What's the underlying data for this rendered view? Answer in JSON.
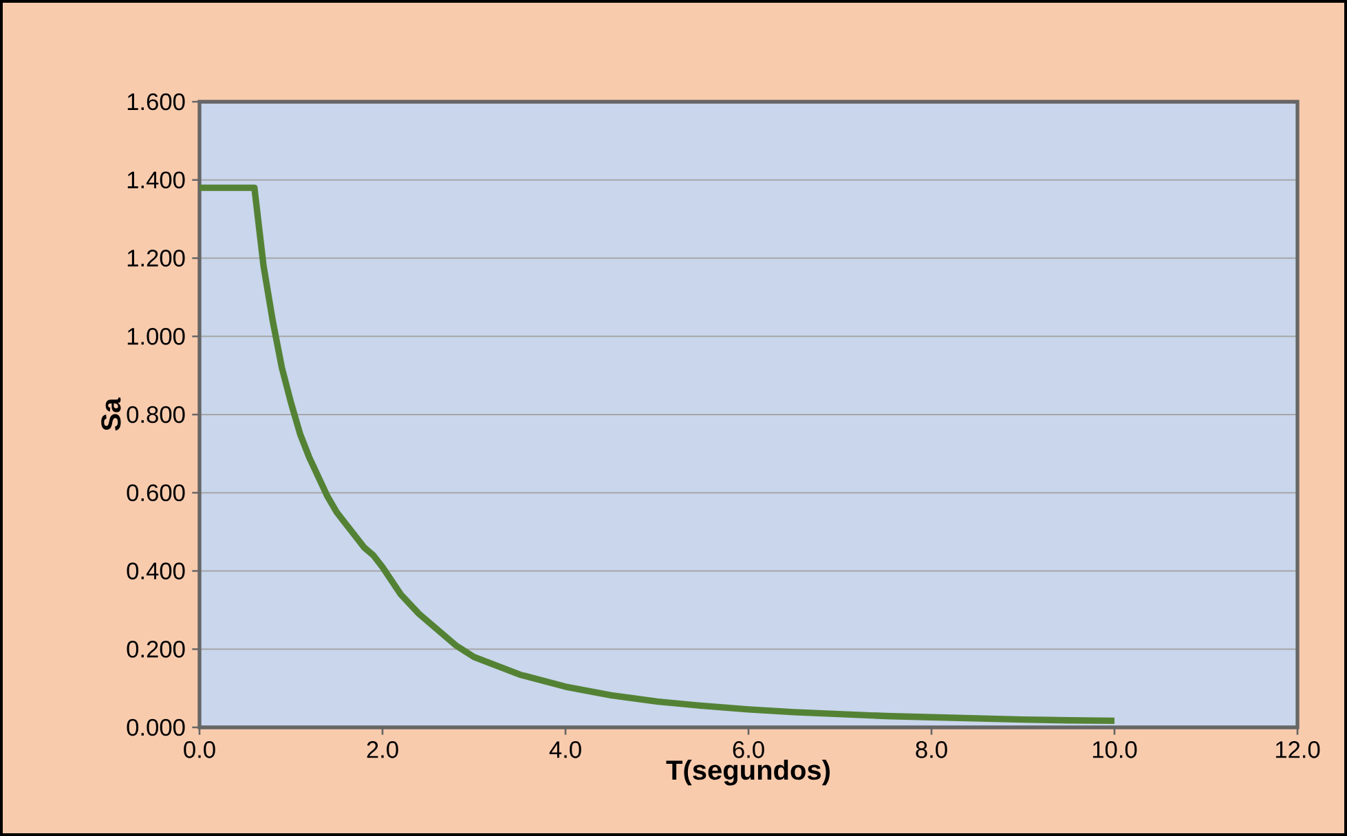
{
  "chart_data": {
    "type": "line",
    "xlabel": "T(segundos)",
    "ylabel": "Sa",
    "x": [
      0,
      0.1,
      0.2,
      0.3,
      0.4,
      0.5,
      0.6,
      0.7,
      0.8,
      0.9,
      1.0,
      1.1,
      1.2,
      1.3,
      1.4,
      1.5,
      1.6,
      1.7,
      1.8,
      1.9,
      2.0,
      2.2,
      2.4,
      2.6,
      2.8,
      3.0,
      3.5,
      4.0,
      4.5,
      5.0,
      5.5,
      6.0,
      6.5,
      7.0,
      7.5,
      8.0,
      8.5,
      9.0,
      9.5,
      10.0
    ],
    "series": [
      {
        "color": "#548235",
        "values": [
          1.38,
          1.38,
          1.38,
          1.38,
          1.38,
          1.38,
          1.38,
          1.18,
          1.04,
          0.92,
          0.83,
          0.75,
          0.69,
          0.64,
          0.59,
          0.55,
          0.52,
          0.49,
          0.46,
          0.44,
          0.41,
          0.34,
          0.29,
          0.25,
          0.21,
          0.18,
          0.135,
          0.104,
          0.082,
          0.066,
          0.055,
          0.046,
          0.039,
          0.034,
          0.029,
          0.026,
          0.023,
          0.02,
          0.018,
          0.017
        ]
      }
    ],
    "xlim": [
      0,
      12
    ],
    "ylim": [
      0,
      1.6
    ],
    "xticks": [
      {
        "value": 0,
        "label": "0.0"
      },
      {
        "value": 2,
        "label": "2.0"
      },
      {
        "value": 4,
        "label": "4.0"
      },
      {
        "value": 6,
        "label": "6.0"
      },
      {
        "value": 8,
        "label": "8.0"
      },
      {
        "value": 10,
        "label": "10.0"
      },
      {
        "value": 12,
        "label": "12.0"
      }
    ],
    "yticks": [
      {
        "value": 0,
        "label": "0.000"
      },
      {
        "value": 0.2,
        "label": "0.200"
      },
      {
        "value": 0.4,
        "label": "0.400"
      },
      {
        "value": 0.6,
        "label": "0.600"
      },
      {
        "value": 0.8,
        "label": "0.800"
      },
      {
        "value": 1.0,
        "label": "1.000"
      },
      {
        "value": 1.2,
        "label": "1.200"
      },
      {
        "value": 1.4,
        "label": "1.400"
      },
      {
        "value": 1.6,
        "label": "1.600"
      }
    ],
    "grid": "y",
    "marker": "none",
    "line_style": "solid"
  }
}
